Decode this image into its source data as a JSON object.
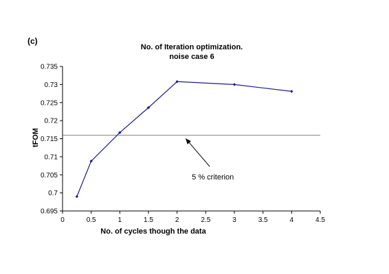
{
  "panel_label": "(c)",
  "chart_data": {
    "type": "line",
    "title_lines": [
      "No. of Iteration optimization.",
      "noise case 6"
    ],
    "xlabel": "No. of cycles though the data",
    "ylabel": "tFOM",
    "xlim": [
      0,
      4.5
    ],
    "ylim": [
      0.695,
      0.735
    ],
    "x_ticks": [
      0,
      0.5,
      1,
      1.5,
      2,
      2.5,
      3,
      3.5,
      4,
      4.5
    ],
    "x_tick_labels": [
      "0",
      "0.5",
      "1",
      "1.5",
      "2",
      "2.5",
      "3",
      "3.5",
      "4",
      "4.5"
    ],
    "y_ticks": [
      0.695,
      0.7,
      0.705,
      0.71,
      0.715,
      0.72,
      0.725,
      0.73,
      0.735
    ],
    "y_tick_labels": [
      "0.695",
      "0.7",
      "0.705",
      "0.71",
      "0.715",
      "0.72",
      "0.725",
      "0.73",
      "0.735"
    ],
    "grid": false,
    "series": [
      {
        "x": [
          0.25,
          0.5,
          1,
          1.5,
          2,
          3,
          4
        ],
        "y": [
          0.699,
          0.7088,
          0.7167,
          0.7236,
          0.7308,
          0.73,
          0.7281
        ],
        "color": "#1a1a8c"
      }
    ],
    "reference_line": {
      "y": 0.716,
      "color": "#555555"
    },
    "annotation": {
      "text": "5 % criterion",
      "arrow_to": [
        2.15,
        0.716
      ]
    }
  }
}
